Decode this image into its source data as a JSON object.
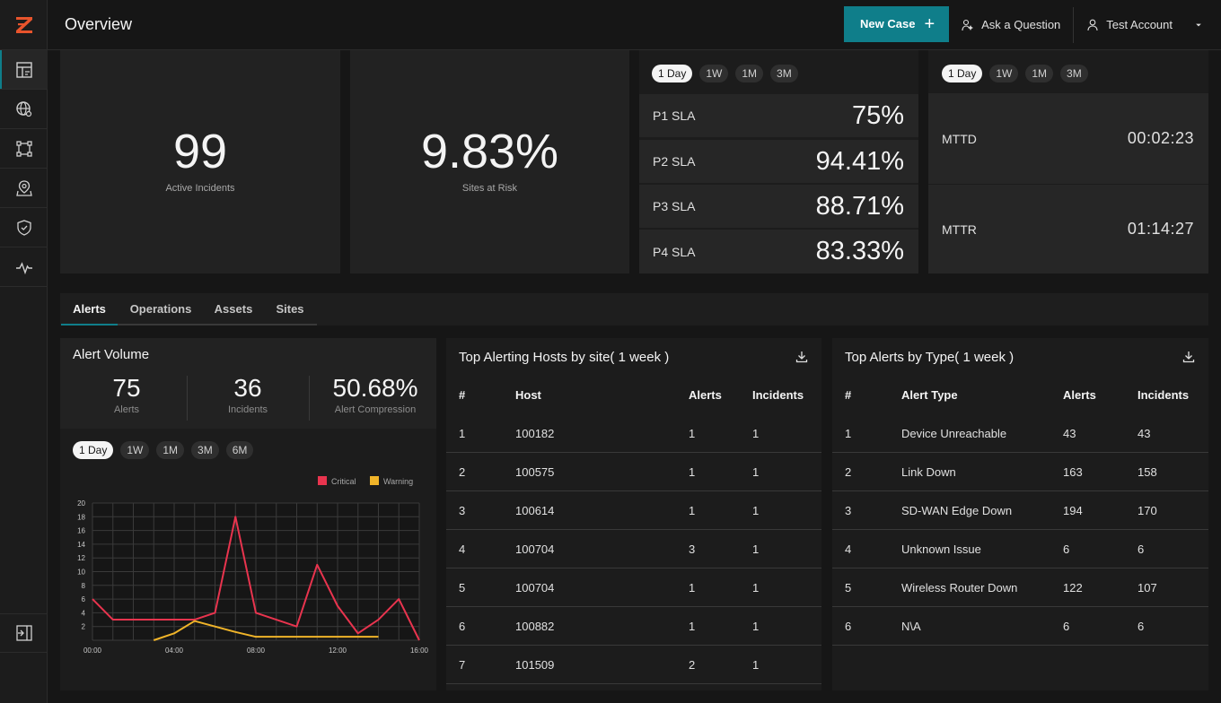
{
  "header": {
    "title": "Overview",
    "new_case_label": "New Case",
    "ask_label": "Ask a Question",
    "account_label": "Test Account"
  },
  "sidebar": {
    "items": [
      "dashboard-icon",
      "globe-icon",
      "topology-icon",
      "location-icon",
      "shield-icon",
      "activity-icon"
    ],
    "active_index": 0
  },
  "kpis": {
    "active_incidents": {
      "value": "99",
      "label": "Active Incidents"
    },
    "sites_at_risk": {
      "value": "9.83%",
      "label": "Sites at Risk"
    }
  },
  "time_ranges": [
    "1 Day",
    "1W",
    "1M",
    "3M"
  ],
  "time_ranges_ext": [
    "1 Day",
    "1W",
    "1M",
    "3M",
    "6M"
  ],
  "sla": [
    {
      "label": "P1 SLA",
      "value": "75%"
    },
    {
      "label": "P2 SLA",
      "value": "94.41%"
    },
    {
      "label": "P3 SLA",
      "value": "88.71%"
    },
    {
      "label": "P4 SLA",
      "value": "83.33%"
    }
  ],
  "mt": [
    {
      "label": "MTTD",
      "value": "00:02:23"
    },
    {
      "label": "MTTR",
      "value": "01:14:27"
    }
  ],
  "tabs": [
    "Alerts",
    "Operations",
    "Assets",
    "Sites"
  ],
  "alert_volume": {
    "title": "Alert Volume",
    "stats": [
      {
        "value": "75",
        "label": "Alerts"
      },
      {
        "value": "36",
        "label": "Incidents"
      },
      {
        "value": "50.68%",
        "label": "Alert Compression"
      }
    ]
  },
  "chart_data": {
    "type": "line",
    "title": "",
    "xlabel": "",
    "ylabel": "",
    "x": [
      "00:00",
      "01:00",
      "02:00",
      "03:00",
      "04:00",
      "05:00",
      "06:00",
      "07:00",
      "08:00",
      "09:00",
      "10:00",
      "11:00",
      "12:00",
      "13:00",
      "14:00",
      "15:00",
      "16:00"
    ],
    "x_tick_labels": [
      "00:00",
      "04:00",
      "08:00",
      "12:00",
      "16:00"
    ],
    "y_ticks": [
      "20",
      "18",
      "16",
      "14",
      "12",
      "10",
      "8",
      "6",
      "4",
      "2"
    ],
    "ylim": [
      0,
      20
    ],
    "grid": true,
    "legend": "top-right",
    "series": [
      {
        "name": "Critical",
        "color": "#e8344e",
        "values": [
          6,
          3,
          3,
          3,
          3,
          3,
          4,
          18,
          4,
          3,
          2,
          11,
          5,
          1,
          3,
          6,
          0
        ]
      },
      {
        "name": "Warning",
        "color": "#f0b429",
        "values": [
          null,
          null,
          null,
          0,
          1,
          2.8,
          2,
          1.2,
          0.5,
          0.5,
          0.5,
          0.5,
          0.5,
          0.5,
          0.5,
          null,
          null
        ]
      }
    ]
  },
  "hosts_table": {
    "title": "Top Alerting Hosts by site( 1 week )",
    "columns": [
      "#",
      "Host",
      "Alerts",
      "Incidents"
    ],
    "rows": [
      [
        "1",
        "100182",
        "1",
        "1"
      ],
      [
        "2",
        "100575",
        "1",
        "1"
      ],
      [
        "3",
        "100614",
        "1",
        "1"
      ],
      [
        "4",
        "100704",
        "3",
        "1"
      ],
      [
        "5",
        "100704",
        "1",
        "1"
      ],
      [
        "6",
        "100882",
        "1",
        "1"
      ],
      [
        "7",
        "101509",
        "2",
        "1"
      ]
    ]
  },
  "types_table": {
    "title": "Top Alerts by Type( 1 week )",
    "columns": [
      "#",
      "Alert Type",
      "Alerts",
      "Incidents"
    ],
    "rows": [
      [
        "1",
        "Device Unreachable",
        "43",
        "43"
      ],
      [
        "2",
        "Link Down",
        "163",
        "158"
      ],
      [
        "3",
        "SD-WAN Edge Down",
        "194",
        "170"
      ],
      [
        "4",
        "Unknown Issue",
        "6",
        "6"
      ],
      [
        "5",
        "Wireless Router Down",
        "122",
        "107"
      ],
      [
        "6",
        "N\\A",
        "6",
        "6"
      ]
    ]
  },
  "colors": {
    "accent": "#0f7e8a",
    "critical": "#e8344e",
    "warning": "#f0b429"
  }
}
